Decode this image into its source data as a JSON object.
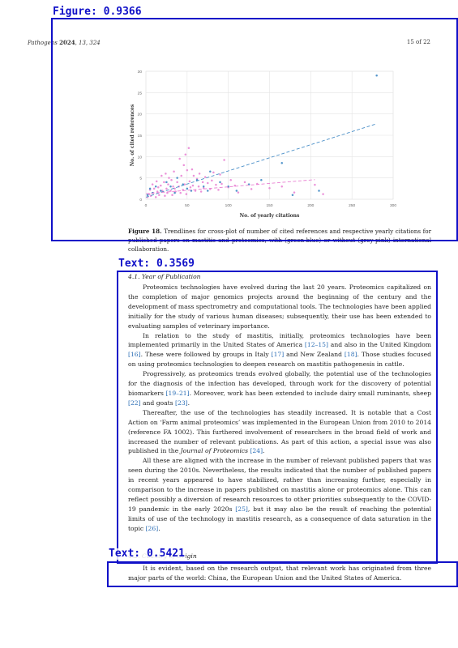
{
  "header": {
    "journal": "Pathogens",
    "year": "2024",
    "rest": ", 13, 324",
    "page": "15 of 22"
  },
  "figure": {
    "caption_label": "Figure 18.",
    "caption_text": " Trendlines for cross-plot of number of cited references and respective yearly citations for published papers on mastitis and proteomics, with (green-blue) or without (grey-pink) international collaboration."
  },
  "chart_data": {
    "type": "scatter",
    "xlabel": "No. of yearly citations",
    "ylabel": "No. of cited references",
    "xlim": [
      0,
      300
    ],
    "ylim": [
      0,
      30
    ],
    "xticks": [
      0,
      50,
      100,
      150,
      200,
      250,
      300
    ],
    "yticks": [
      0,
      5,
      10,
      15,
      20,
      25,
      30
    ],
    "grid": true,
    "series": [
      {
        "color": "#4a8fc8",
        "trend": [
          [
            0,
            0.5
          ],
          [
            280,
            17.7
          ]
        ],
        "points": [
          [
            2,
            1
          ],
          [
            5,
            2.5
          ],
          [
            8,
            1.5
          ],
          [
            12,
            3
          ],
          [
            18,
            2
          ],
          [
            25,
            4
          ],
          [
            30,
            3
          ],
          [
            35,
            1.5
          ],
          [
            38,
            5
          ],
          [
            45,
            3.5
          ],
          [
            50,
            2.5
          ],
          [
            55,
            2
          ],
          [
            62,
            4.5
          ],
          [
            70,
            3
          ],
          [
            75,
            2
          ],
          [
            78,
            6.5
          ],
          [
            90,
            4
          ],
          [
            100,
            3
          ],
          [
            110,
            2
          ],
          [
            125,
            3.5
          ],
          [
            140,
            4.5
          ],
          [
            165,
            8.5
          ],
          [
            178,
            1
          ],
          [
            210,
            2
          ],
          [
            280,
            29
          ]
        ]
      },
      {
        "color": "#e87fd2",
        "trend": [
          [
            0,
            1.3
          ],
          [
            205,
            4.6
          ]
        ],
        "points": [
          [
            2,
            0.5
          ],
          [
            4,
            1.2
          ],
          [
            5,
            2.2
          ],
          [
            6,
            0.8
          ],
          [
            8,
            3.5
          ],
          [
            9,
            1.5
          ],
          [
            10,
            2.5
          ],
          [
            12,
            0.5
          ],
          [
            13,
            4.2
          ],
          [
            14,
            1.8
          ],
          [
            15,
            2.8
          ],
          [
            16,
            1
          ],
          [
            18,
            3.2
          ],
          [
            19,
            5.5
          ],
          [
            20,
            2
          ],
          [
            22,
            4
          ],
          [
            23,
            0.8
          ],
          [
            24,
            6
          ],
          [
            25,
            2.5
          ],
          [
            26,
            1.5
          ],
          [
            27,
            3.5
          ],
          [
            28,
            5
          ],
          [
            30,
            2
          ],
          [
            31,
            4.5
          ],
          [
            32,
            1
          ],
          [
            33,
            3
          ],
          [
            34,
            6.5
          ],
          [
            35,
            2.5
          ],
          [
            36,
            1.8
          ],
          [
            38,
            4
          ],
          [
            40,
            3
          ],
          [
            41,
            9.5
          ],
          [
            42,
            1.5
          ],
          [
            43,
            5.5
          ],
          [
            45,
            2.2
          ],
          [
            46,
            8
          ],
          [
            47,
            3.5
          ],
          [
            48,
            10.5
          ],
          [
            49,
            1.2
          ],
          [
            50,
            6.8
          ],
          [
            52,
            12
          ],
          [
            53,
            4.2
          ],
          [
            54,
            2.8
          ],
          [
            56,
            7
          ],
          [
            57,
            3.2
          ],
          [
            58,
            5.5
          ],
          [
            60,
            2
          ],
          [
            62,
            4.8
          ],
          [
            64,
            3
          ],
          [
            65,
            6
          ],
          [
            67,
            1.8
          ],
          [
            69,
            4
          ],
          [
            70,
            2.6
          ],
          [
            72,
            5.2
          ],
          [
            75,
            3.8
          ],
          [
            78,
            2.4
          ],
          [
            80,
            4.4
          ],
          [
            82,
            6.3
          ],
          [
            85,
            3.4
          ],
          [
            88,
            2.2
          ],
          [
            90,
            5.8
          ],
          [
            92,
            3.6
          ],
          [
            95,
            9.2
          ],
          [
            100,
            2.8
          ],
          [
            103,
            4.5
          ],
          [
            108,
            3.2
          ],
          [
            112,
            1.6
          ],
          [
            120,
            4
          ],
          [
            128,
            2.4
          ],
          [
            135,
            3.6
          ],
          [
            150,
            2.6
          ],
          [
            165,
            3
          ],
          [
            180,
            1.6
          ],
          [
            205,
            3.4
          ],
          [
            215,
            1.2
          ]
        ]
      }
    ]
  },
  "section": {
    "title": "4.1. Year of Publication",
    "paragraphs": [
      [
        {
          "t": "Proteomics technologies have evolved during the last 20 years. Proteomics capitalized on the completion of major genomics projects around the beginning of the century and the development of mass spectrometry and computational tools. The technologies have been applied initially for the study of various human diseases; subsequently, their use has been extended to evaluating samples of veterinary importance."
        }
      ],
      [
        {
          "t": "In relation to the study of mastitis, initially, proteomics technologies have been implemented primarily in the United States of America "
        },
        {
          "t": "[12–15]",
          "cls": "ref"
        },
        {
          "t": " and also in the United Kingdom "
        },
        {
          "t": "[16]",
          "cls": "ref"
        },
        {
          "t": ". These were followed by groups in Italy "
        },
        {
          "t": "[17]",
          "cls": "ref"
        },
        {
          "t": " and New Zealand "
        },
        {
          "t": "[18]",
          "cls": "ref"
        },
        {
          "t": ". Those studies focused on using proteomics technologies to deepen research on mastitis pathogenesis in cattle."
        }
      ],
      [
        {
          "t": "Progressively, as proteomics trends evolved globally, the potential use of the technologies for the diagnosis of the infection has developed, through work for the discovery of potential biomarkers "
        },
        {
          "t": "[19–21]",
          "cls": "ref"
        },
        {
          "t": ". Moreover, work has been extended to include dairy small ruminants, sheep "
        },
        {
          "t": "[22]",
          "cls": "ref"
        },
        {
          "t": " and goats "
        },
        {
          "t": "[23]",
          "cls": "ref"
        },
        {
          "t": "."
        }
      ],
      [
        {
          "t": "Thereafter, the use of the technologies has steadily increased. It is notable that a Cost Action on ‘Farm animal proteomics’ was implemented in the European Union from 2010 to 2014 (reference FA 1002). This furthered involvement of researchers in the broad field of work and increased the number of relevant publications. As part of this action, a special issue was also published in the "
        },
        {
          "t": "Journal of Proteomics",
          "cls": "ital"
        },
        {
          "t": " "
        },
        {
          "t": "[24]",
          "cls": "ref"
        },
        {
          "t": "."
        }
      ],
      [
        {
          "t": "All these are aligned with the increase in the number of relevant published papers that was seen during the 2010s. Nevertheless, the results indicated that the number of published papers in recent years appeared to have stabilized, rather than increasing further, especially in comparison to the increase in papers published on mastitis alone or proteomics alone. This can reflect possibly a diversion of research resources to other priorities subsequently to the COVID-19 pandemic in the early 2020s "
        },
        {
          "t": "[25]",
          "cls": "ref"
        },
        {
          "t": ", but it may also be the result of reaching the potential limits of use of the technology in mastitis research, as a consequence of data saturation in the topic "
        },
        {
          "t": "[26]",
          "cls": "ref"
        },
        {
          "t": "."
        }
      ]
    ]
  },
  "section2": {
    "title": "4.2. Country of Origin",
    "paragraph": "It is evident, based on the research output, that relevant work has originated from three major parts of the world: China, the European Union and the United States of America."
  },
  "detections": [
    {
      "label": "Figure: 0.9366"
    },
    {
      "label": "Text: 0.3569"
    },
    {
      "label": "Text: 0.5421"
    }
  ]
}
